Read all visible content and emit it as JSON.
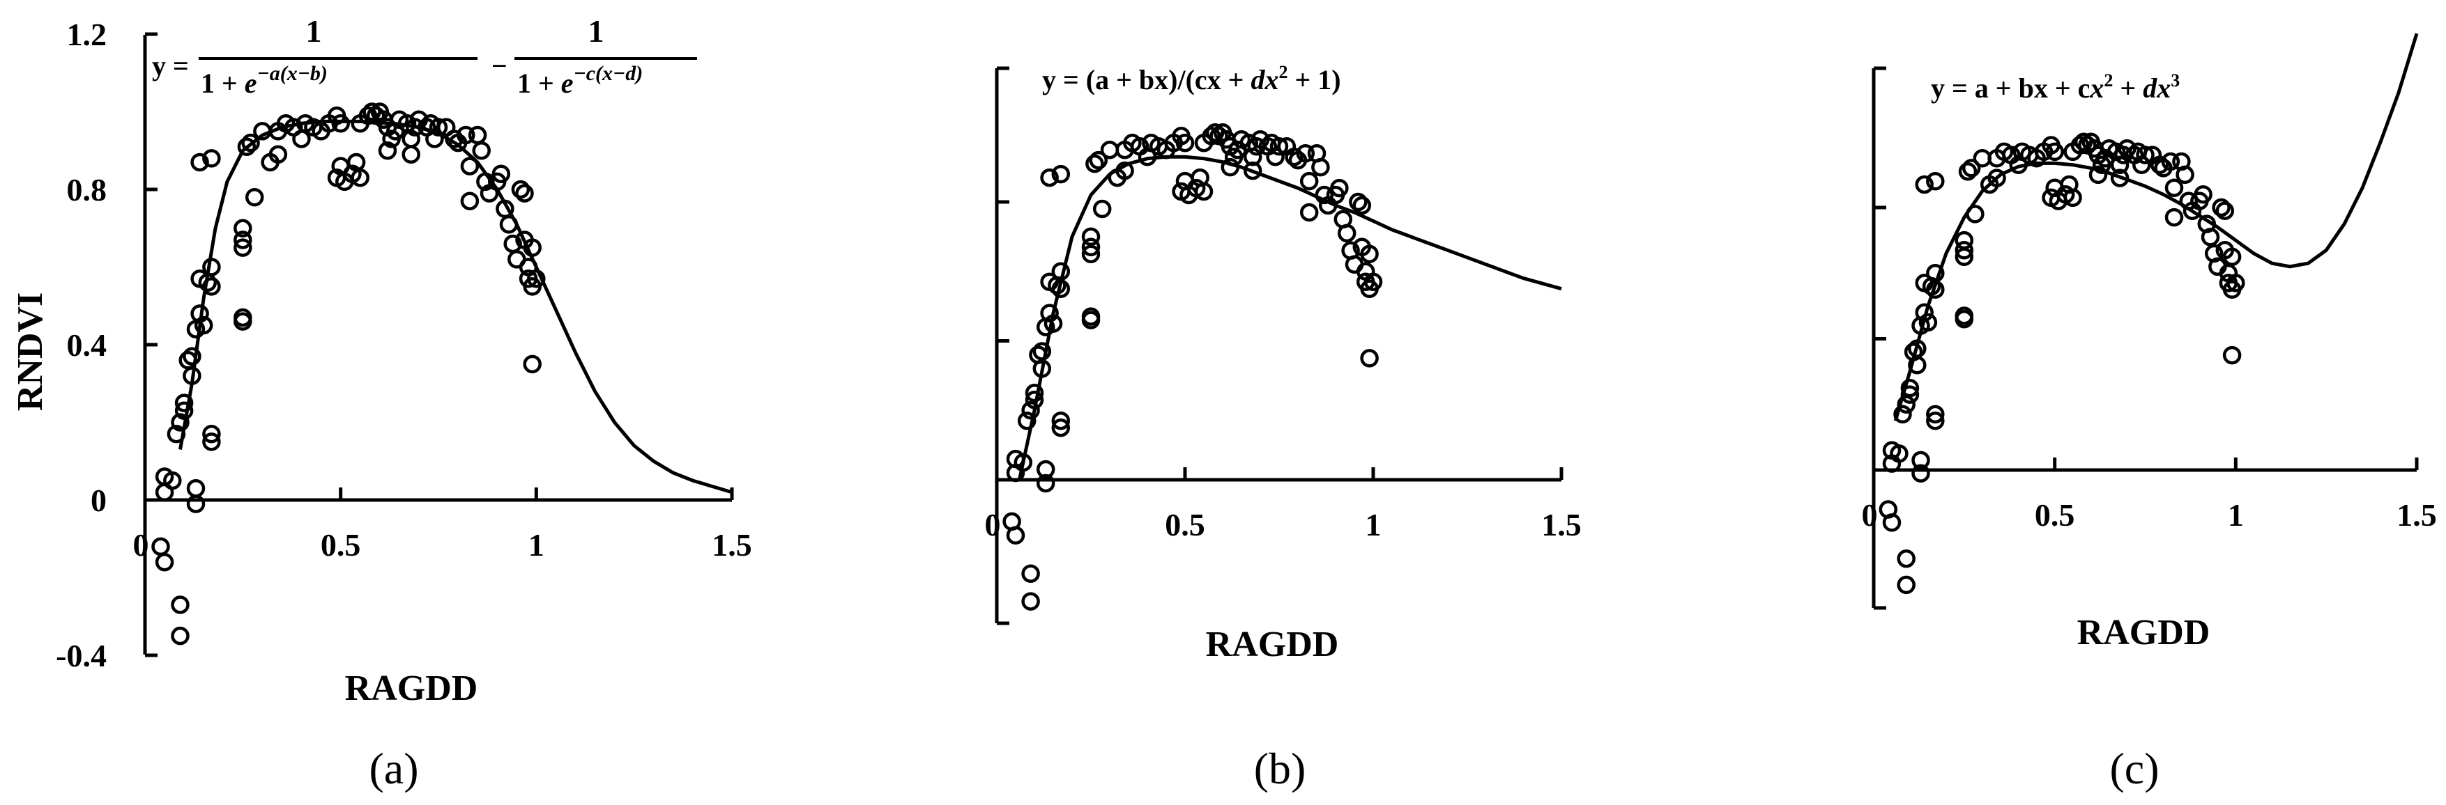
{
  "chart_data": [
    {
      "id": "a",
      "type": "scatter",
      "panel_label": "(a)",
      "equation": "y = 1/(1 + e^(−a(x−b))) − 1/(1 + e^(−c(x−d)))",
      "xlabel": "RAGDD",
      "ylabel": "RNDVI",
      "xlim": [
        0,
        1.5
      ],
      "ylim": [
        -0.4,
        1.2
      ],
      "x_ticks": [
        0,
        0.5,
        1,
        1.5
      ],
      "x_tick_labels": [
        "0",
        "0.5",
        "1",
        "1.5"
      ],
      "y_ticks": [
        -0.4,
        0,
        0.4,
        0.8,
        1.2
      ],
      "y_tick_labels": [
        "-0.4",
        "0",
        "0.4",
        "0.8",
        "1.2"
      ],
      "fit": {
        "model": "double_logistic",
        "x": [
          0.09,
          0.12,
          0.15,
          0.18,
          0.21,
          0.25,
          0.3,
          0.35,
          0.4,
          0.45,
          0.5,
          0.55,
          0.6,
          0.65,
          0.7,
          0.75,
          0.8,
          0.85,
          0.9,
          0.95,
          1.0,
          1.05,
          1.1,
          1.15,
          1.2,
          1.25,
          1.3,
          1.35,
          1.4,
          1.45,
          1.5
        ],
        "y": [
          0.13,
          0.3,
          0.52,
          0.7,
          0.82,
          0.9,
          0.94,
          0.96,
          0.97,
          0.975,
          0.975,
          0.975,
          0.972,
          0.968,
          0.96,
          0.945,
          0.915,
          0.87,
          0.8,
          0.71,
          0.6,
          0.49,
          0.38,
          0.28,
          0.2,
          0.14,
          0.1,
          0.07,
          0.05,
          0.035,
          0.02
        ]
      }
    },
    {
      "id": "b",
      "type": "scatter",
      "panel_label": "(b)",
      "equation": "y = (a + bx)/(cx + dx² + 1)",
      "xlabel": "RAGDD",
      "ylabel": "",
      "xlim": [
        0,
        1.5
      ],
      "ylim": [
        -0.4,
        1.2
      ],
      "x_ticks": [
        0,
        0.5,
        1,
        1.5
      ],
      "x_tick_labels": [
        "0",
        "0.5",
        "1",
        "1.5"
      ],
      "y_ticks": [
        0,
        0.4,
        0.8
      ],
      "y_tick_labels": [],
      "fit": {
        "model": "rational",
        "x": [
          0.06,
          0.1,
          0.15,
          0.2,
          0.25,
          0.3,
          0.35,
          0.4,
          0.45,
          0.5,
          0.55,
          0.6,
          0.65,
          0.7,
          0.75,
          0.8,
          0.85,
          0.9,
          0.95,
          1.0,
          1.05,
          1.1,
          1.15,
          1.2,
          1.25,
          1.3,
          1.35,
          1.4,
          1.45,
          1.5
        ],
        "y": [
          0.0,
          0.2,
          0.48,
          0.7,
          0.82,
          0.88,
          0.91,
          0.925,
          0.93,
          0.93,
          0.925,
          0.915,
          0.9,
          0.88,
          0.86,
          0.84,
          0.815,
          0.79,
          0.77,
          0.745,
          0.72,
          0.7,
          0.68,
          0.66,
          0.64,
          0.62,
          0.6,
          0.58,
          0.565,
          0.55
        ]
      }
    },
    {
      "id": "c",
      "type": "scatter",
      "panel_label": "(c)",
      "equation": "y = a + bx + cx² + dx³",
      "xlabel": "RAGDD",
      "ylabel": "",
      "xlim": [
        0,
        1.5
      ],
      "ylim": [
        -0.4,
        1.2
      ],
      "x_ticks": [
        0,
        0.5,
        1,
        1.5
      ],
      "x_tick_labels": [
        "0",
        "0.5",
        "1",
        "1.5"
      ],
      "y_ticks": [
        0,
        0.4,
        0.8
      ],
      "y_tick_labels": [],
      "fit": {
        "model": "cubic",
        "x": [
          0.06,
          0.1,
          0.15,
          0.2,
          0.25,
          0.3,
          0.35,
          0.4,
          0.45,
          0.5,
          0.55,
          0.6,
          0.65,
          0.7,
          0.75,
          0.8,
          0.85,
          0.9,
          0.95,
          1.0,
          1.05,
          1.1,
          1.15,
          1.2,
          1.25,
          1.3,
          1.35,
          1.4,
          1.45,
          1.5
        ],
        "y": [
          0.15,
          0.3,
          0.5,
          0.66,
          0.77,
          0.85,
          0.9,
          0.925,
          0.935,
          0.935,
          0.93,
          0.92,
          0.905,
          0.885,
          0.865,
          0.84,
          0.81,
          0.775,
          0.74,
          0.7,
          0.66,
          0.63,
          0.62,
          0.63,
          0.67,
          0.75,
          0.86,
          1.0,
          1.15,
          1.33
        ]
      }
    }
  ],
  "points": [
    [
      0.05,
      0.06
    ],
    [
      0.05,
      0.02
    ],
    [
      0.07,
      0.05
    ],
    [
      0.04,
      -0.12
    ],
    [
      0.05,
      -0.16
    ],
    [
      0.09,
      -0.27
    ],
    [
      0.09,
      -0.35
    ],
    [
      0.13,
      0.03
    ],
    [
      0.13,
      -0.01
    ],
    [
      0.08,
      0.17
    ],
    [
      0.09,
      0.2
    ],
    [
      0.1,
      0.23
    ],
    [
      0.1,
      0.25
    ],
    [
      0.11,
      0.36
    ],
    [
      0.12,
      0.37
    ],
    [
      0.12,
      0.32
    ],
    [
      0.13,
      0.44
    ],
    [
      0.14,
      0.48
    ],
    [
      0.15,
      0.45
    ],
    [
      0.14,
      0.57
    ],
    [
      0.16,
      0.56
    ],
    [
      0.17,
      0.6
    ],
    [
      0.17,
      0.55
    ],
    [
      0.17,
      0.17
    ],
    [
      0.17,
      0.15
    ],
    [
      0.14,
      0.87
    ],
    [
      0.17,
      0.88
    ],
    [
      0.25,
      0.46
    ],
    [
      0.25,
      0.47
    ],
    [
      0.25,
      0.65
    ],
    [
      0.25,
      0.67
    ],
    [
      0.25,
      0.7
    ],
    [
      0.28,
      0.78
    ],
    [
      0.26,
      0.91
    ],
    [
      0.27,
      0.92
    ],
    [
      0.3,
      0.95
    ],
    [
      0.32,
      0.87
    ],
    [
      0.34,
      0.89
    ],
    [
      0.34,
      0.95
    ],
    [
      0.36,
      0.97
    ],
    [
      0.38,
      0.96
    ],
    [
      0.4,
      0.93
    ],
    [
      0.41,
      0.97
    ],
    [
      0.43,
      0.96
    ],
    [
      0.45,
      0.95
    ],
    [
      0.47,
      0.97
    ],
    [
      0.49,
      0.99
    ],
    [
      0.5,
      0.97
    ],
    [
      0.5,
      0.86
    ],
    [
      0.49,
      0.83
    ],
    [
      0.51,
      0.82
    ],
    [
      0.53,
      0.84
    ],
    [
      0.54,
      0.87
    ],
    [
      0.55,
      0.83
    ],
    [
      0.55,
      0.97
    ],
    [
      0.57,
      0.99
    ],
    [
      0.58,
      1.0
    ],
    [
      0.59,
      0.99
    ],
    [
      0.6,
      1.0
    ],
    [
      0.61,
      0.98
    ],
    [
      0.62,
      0.96
    ],
    [
      0.63,
      0.93
    ],
    [
      0.62,
      0.9
    ],
    [
      0.64,
      0.95
    ],
    [
      0.65,
      0.98
    ],
    [
      0.67,
      0.97
    ],
    [
      0.68,
      0.93
    ],
    [
      0.68,
      0.89
    ],
    [
      0.69,
      0.96
    ],
    [
      0.7,
      0.98
    ],
    [
      0.72,
      0.96
    ],
    [
      0.73,
      0.97
    ],
    [
      0.74,
      0.93
    ],
    [
      0.75,
      0.96
    ],
    [
      0.77,
      0.96
    ],
    [
      0.79,
      0.93
    ],
    [
      0.8,
      0.92
    ],
    [
      0.82,
      0.94
    ],
    [
      0.83,
      0.77
    ],
    [
      0.83,
      0.86
    ],
    [
      0.85,
      0.94
    ],
    [
      0.86,
      0.9
    ],
    [
      0.87,
      0.82
    ],
    [
      0.88,
      0.79
    ],
    [
      0.9,
      0.82
    ],
    [
      0.91,
      0.84
    ],
    [
      0.92,
      0.75
    ],
    [
      0.93,
      0.71
    ],
    [
      0.94,
      0.66
    ],
    [
      0.95,
      0.62
    ],
    [
      0.96,
      0.8
    ],
    [
      0.97,
      0.79
    ],
    [
      0.97,
      0.67
    ],
    [
      0.98,
      0.6
    ],
    [
      0.98,
      0.57
    ],
    [
      0.99,
      0.55
    ],
    [
      0.99,
      0.65
    ],
    [
      1.0,
      0.57
    ],
    [
      0.99,
      0.35
    ]
  ],
  "footnote_labels": [
    "(a)",
    "(b)",
    "(c)"
  ]
}
